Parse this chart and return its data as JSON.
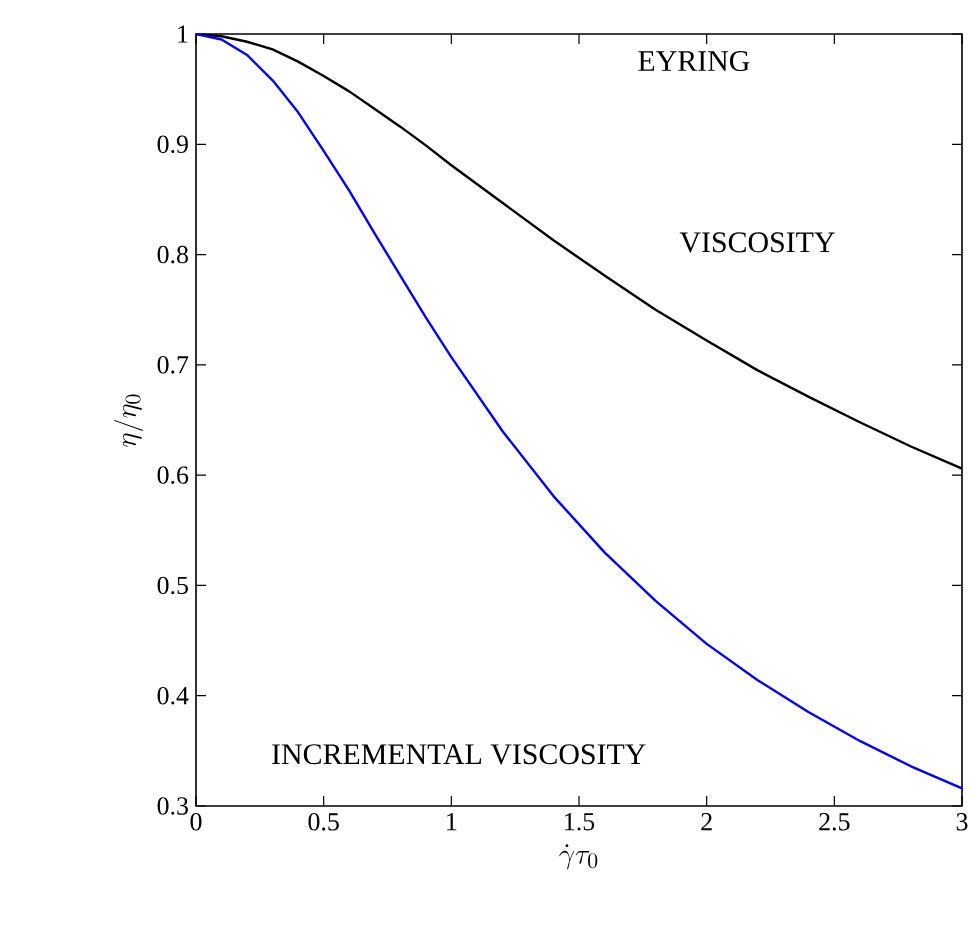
{
  "chart_data": {
    "type": "line",
    "xlabel": "\\dot{\\gamma}\\tau_0",
    "ylabel": "\\eta/\\eta_0",
    "xlim": [
      0,
      3
    ],
    "ylim": [
      0.3,
      1
    ],
    "xticks": [
      0,
      0.5,
      1,
      1.5,
      2,
      2.5,
      3
    ],
    "yticks": [
      0.3,
      0.4,
      0.5,
      0.6,
      0.7,
      0.8,
      0.9,
      1
    ],
    "grid": false,
    "marker": "none",
    "line_style": "solid",
    "x": [
      0,
      0.1,
      0.2,
      0.3,
      0.4,
      0.5,
      0.6,
      0.7,
      0.8,
      0.9,
      1.0,
      1.2,
      1.4,
      1.6,
      1.8,
      2.0,
      2.2,
      2.4,
      2.6,
      2.8,
      3.0
    ],
    "series": [
      {
        "color": "#000000",
        "values": [
          1,
          0.998,
          0.993,
          0.986,
          0.975,
          0.962,
          0.948,
          0.932,
          0.916,
          0.899,
          0.881,
          0.847,
          0.813,
          0.781,
          0.75,
          0.722,
          0.695,
          0.671,
          0.648,
          0.626,
          0.606
        ]
      },
      {
        "color": "#0000ff",
        "values": [
          1,
          0.995,
          0.981,
          0.958,
          0.929,
          0.894,
          0.858,
          0.819,
          0.781,
          0.743,
          0.707,
          0.64,
          0.581,
          0.53,
          0.486,
          0.447,
          0.414,
          0.385,
          0.359,
          0.336,
          0.316
        ]
      }
    ],
    "annotations": [
      "EYRING",
      "VISCOSITY",
      "INCREMENTAL VISCOSITY"
    ]
  }
}
